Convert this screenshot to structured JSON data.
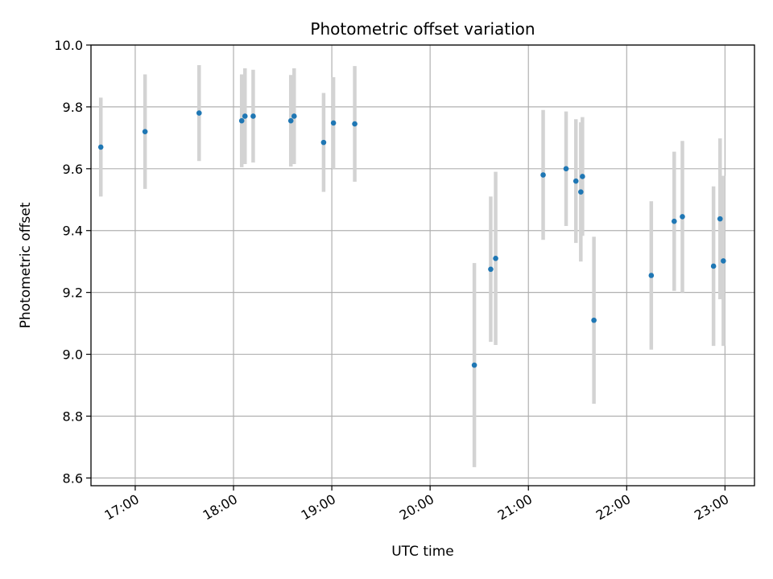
{
  "chart_data": {
    "type": "scatter",
    "title": "Photometric offset variation",
    "xlabel": "UTC time",
    "ylabel": "Photometric offset",
    "xlim": [
      "16:33",
      "23:18"
    ],
    "ylim": [
      8.575,
      10.0
    ],
    "x_ticks": [
      "17:00",
      "18:00",
      "19:00",
      "20:00",
      "21:00",
      "22:00",
      "23:00"
    ],
    "y_ticks": [
      "8.6",
      "8.8",
      "9.0",
      "9.2",
      "9.4",
      "9.6",
      "9.8",
      "10.0"
    ],
    "grid": true,
    "colors": {
      "points": "#1f77b4",
      "errorbars": "#d3d3d3",
      "grid": "#b0b0b0"
    },
    "series": [
      {
        "points": [
          {
            "time": "16:39",
            "y": 9.67,
            "err": 0.16
          },
          {
            "time": "17:06",
            "y": 9.72,
            "err": 0.185
          },
          {
            "time": "17:39",
            "y": 9.78,
            "err": 0.155
          },
          {
            "time": "18:05",
            "y": 9.755,
            "err": 0.15
          },
          {
            "time": "18:07",
            "y": 9.77,
            "err": 0.155
          },
          {
            "time": "18:12",
            "y": 9.77,
            "err": 0.15
          },
          {
            "time": "18:35",
            "y": 9.755,
            "err": 0.148
          },
          {
            "time": "18:37",
            "y": 9.77,
            "err": 0.155
          },
          {
            "time": "18:55",
            "y": 9.685,
            "err": 0.16
          },
          {
            "time": "19:01",
            "y": 9.748,
            "err": 0.148
          },
          {
            "time": "19:14",
            "y": 9.745,
            "err": 0.187
          },
          {
            "time": "20:27",
            "y": 8.965,
            "err": 0.33
          },
          {
            "time": "20:37",
            "y": 9.275,
            "err": 0.235
          },
          {
            "time": "20:40",
            "y": 9.31,
            "err": 0.28
          },
          {
            "time": "21:09",
            "y": 9.58,
            "err": 0.21
          },
          {
            "time": "21:23",
            "y": 9.6,
            "err": 0.185
          },
          {
            "time": "21:29",
            "y": 9.56,
            "err": 0.2
          },
          {
            "time": "21:32",
            "y": 9.525,
            "err": 0.225
          },
          {
            "time": "21:33",
            "y": 9.575,
            "err": 0.192
          },
          {
            "time": "21:40",
            "y": 9.11,
            "err": 0.27
          },
          {
            "time": "22:15",
            "y": 9.255,
            "err": 0.24
          },
          {
            "time": "22:29",
            "y": 9.43,
            "err": 0.225
          },
          {
            "time": "22:34",
            "y": 9.445,
            "err": 0.245
          },
          {
            "time": "22:53",
            "y": 9.285,
            "err": 0.258
          },
          {
            "time": "22:57",
            "y": 9.438,
            "err": 0.26
          },
          {
            "time": "22:59",
            "y": 9.302,
            "err": 0.275
          }
        ]
      }
    ]
  }
}
